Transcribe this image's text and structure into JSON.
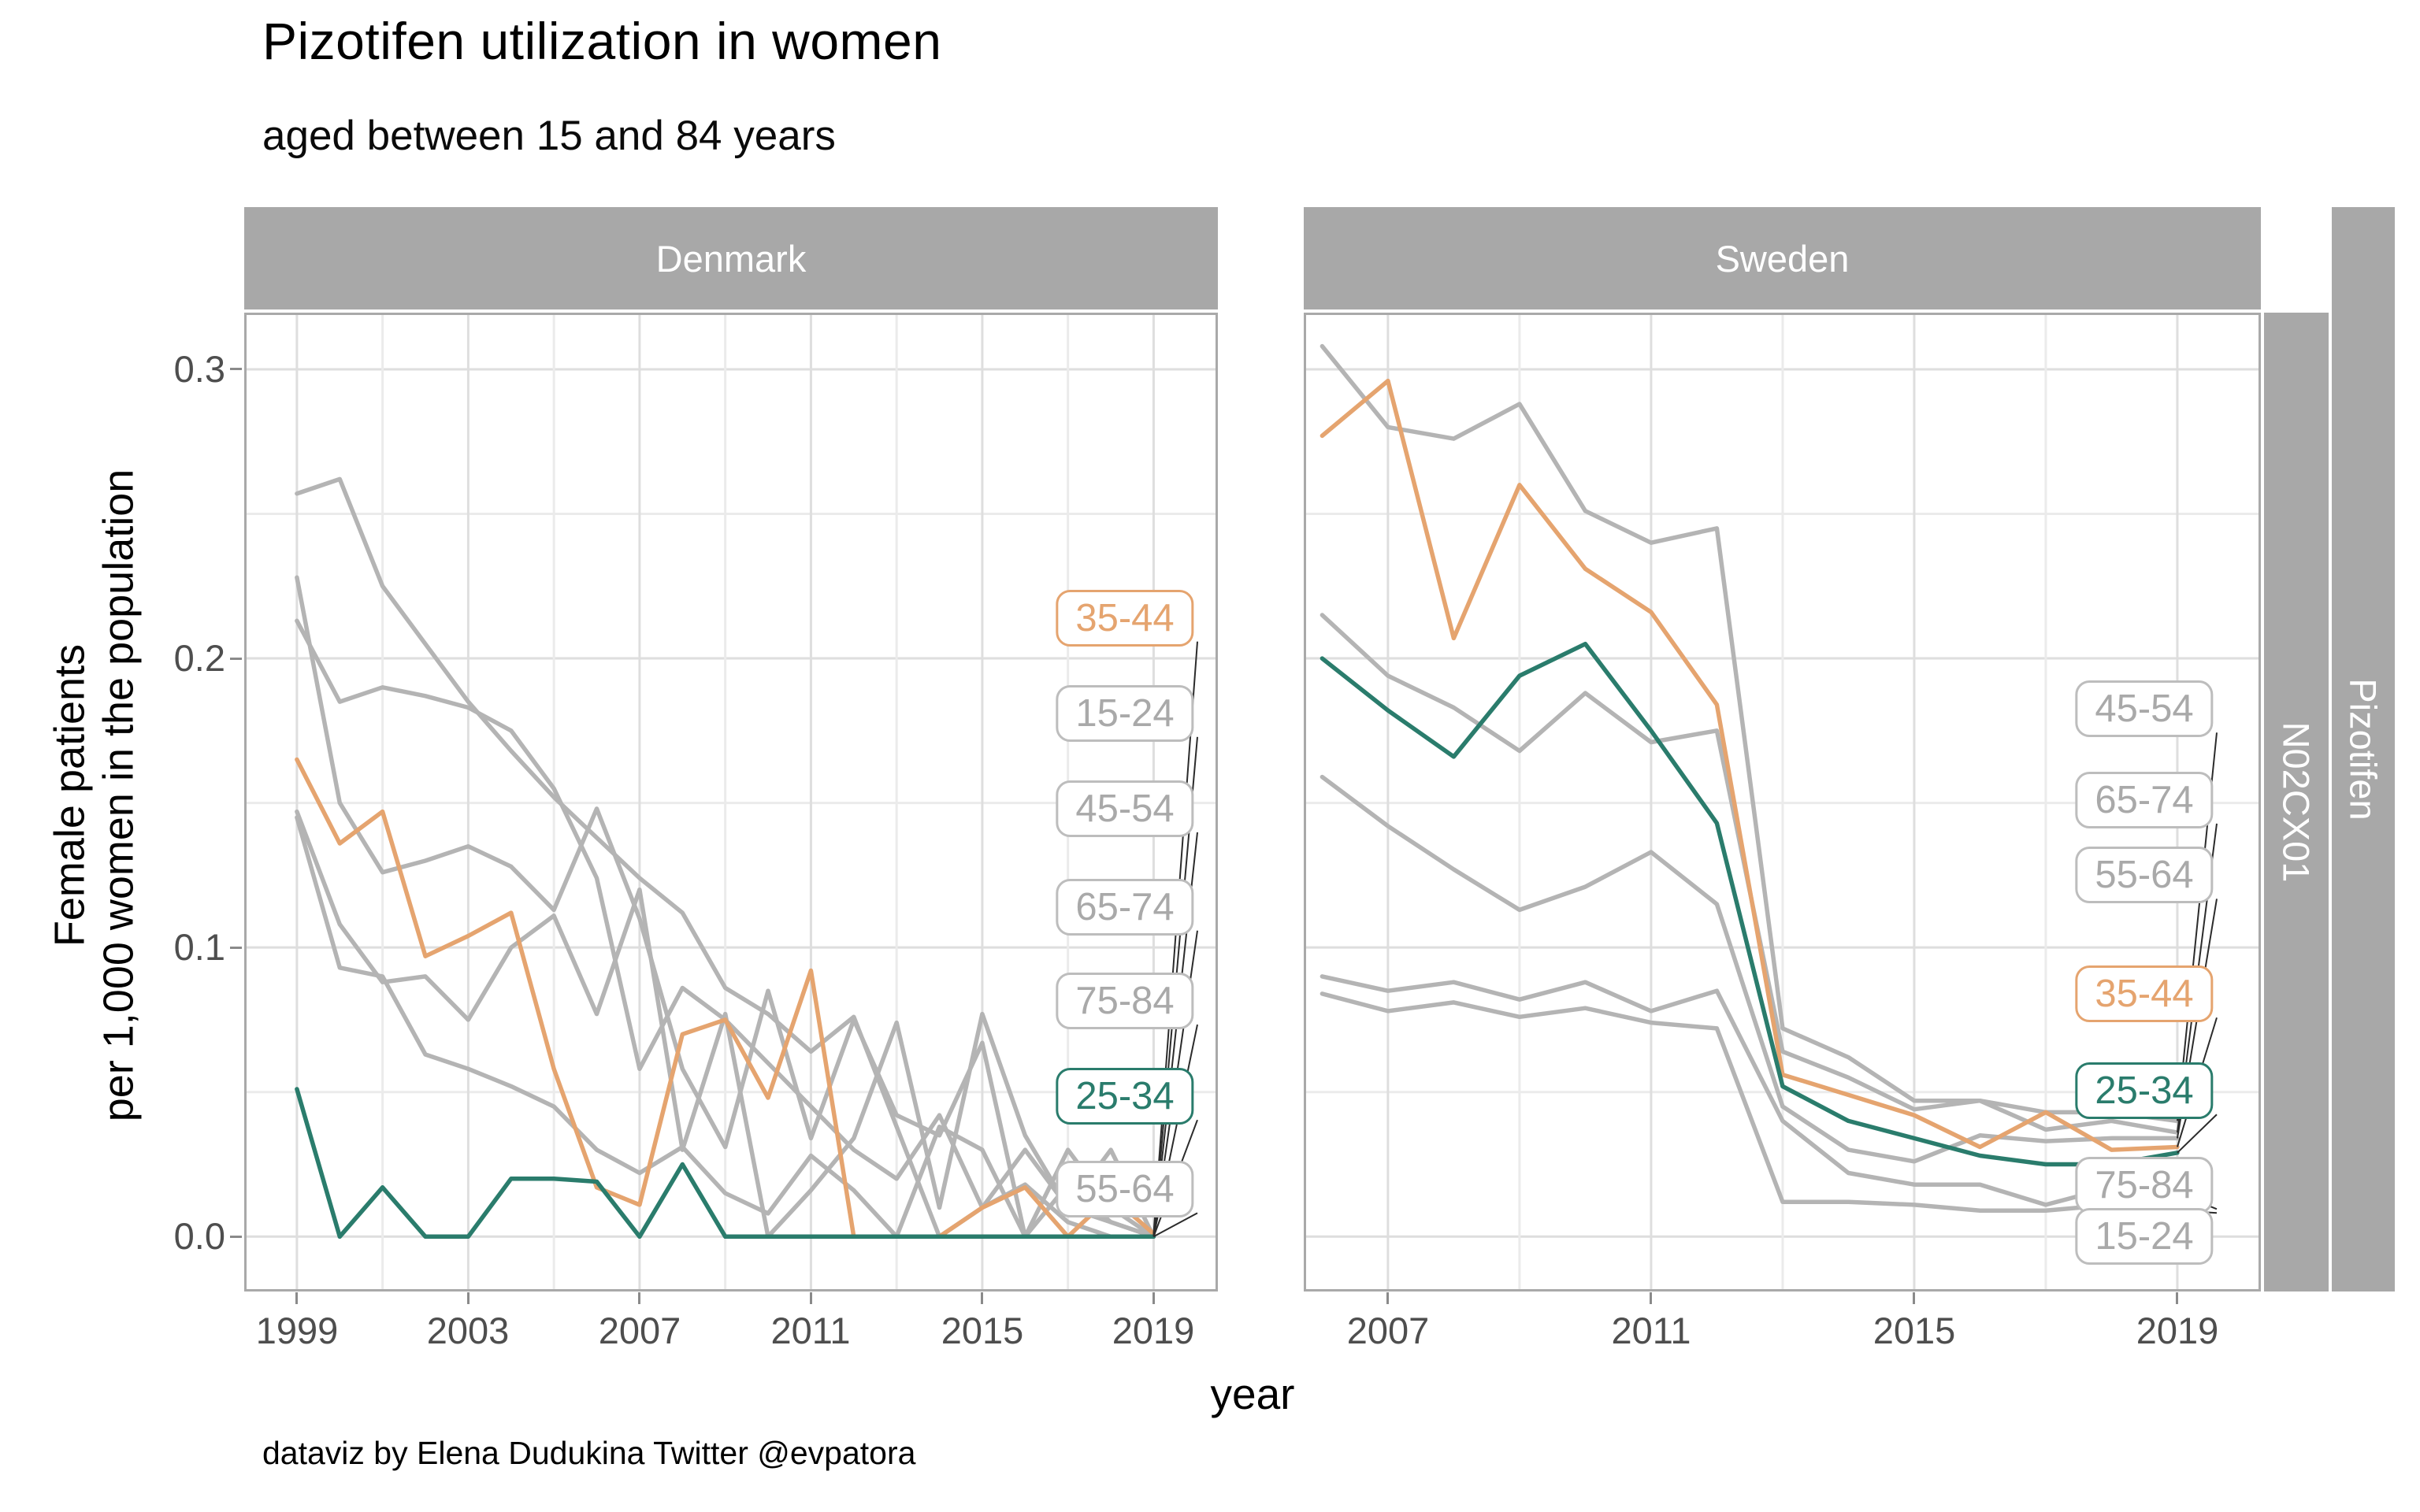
{
  "title": "Pizotifen utilization in women",
  "subtitle": "aged between 15 and 84 years",
  "caption": "dataviz by Elena Dudukina Twitter @evpatora",
  "x_axis_title": "year",
  "y_axis_title_line1": "Female patients",
  "y_axis_title_line2": "per 1,000 women in the population",
  "strip_right": [
    "N02CX01",
    "Pizotifen"
  ],
  "colors": {
    "gray": "#b4b4b4",
    "orange": "#e5a46f",
    "teal": "#2a7c6c",
    "grid_major": "#dedede",
    "grid_minor": "#ebebeb",
    "panel_border": "#a9a9a9",
    "strip_bg": "#a8a8a8",
    "strip_text": "#ffffff",
    "axis_text": "#4e4e4e",
    "tick_mark": "#8a8a8a",
    "leader": "#2b2b2b"
  },
  "y_ticks": [
    {
      "label": "0.0",
      "v": 0.0
    },
    {
      "label": "0.1",
      "v": 0.1
    },
    {
      "label": "0.2",
      "v": 0.2
    },
    {
      "label": "0.3",
      "v": 0.3
    }
  ],
  "y_grid": [
    0.0,
    0.05,
    0.1,
    0.15,
    0.2,
    0.25,
    0.3
  ],
  "y_grid_major": [
    0.0,
    0.1,
    0.2,
    0.3
  ],
  "ylim": [
    -0.019,
    0.3196
  ],
  "chart_data": [
    {
      "type": "line",
      "facet": "Denmark",
      "xlabel": "year",
      "ylabel": "Female patients per 1,000 women in the population",
      "x": [
        1999,
        2000,
        2001,
        2002,
        2003,
        2004,
        2005,
        2006,
        2007,
        2008,
        2009,
        2010,
        2011,
        2012,
        2013,
        2014,
        2015,
        2016,
        2017,
        2018,
        2019
      ],
      "x_tick_labels": [
        1999,
        2003,
        2007,
        2011,
        2015,
        2019
      ],
      "x_grid_years": [
        1999,
        2001,
        2003,
        2005,
        2007,
        2009,
        2011,
        2013,
        2015,
        2017,
        2019
      ],
      "xlim": [
        1997.77,
        2020.5
      ],
      "series": [
        {
          "name": "15-24",
          "color": "gray",
          "values": [
            0.145,
            0.093,
            0.09,
            0.063,
            0.058,
            0.052,
            0.045,
            0.03,
            0.022,
            0.031,
            0.015,
            0.008,
            0.028,
            0.016,
            0.0,
            0.038,
            0.03,
            0.0,
            0.018,
            0.005,
            0.0
          ]
        },
        {
          "name": "45-54",
          "color": "gray",
          "values": [
            0.257,
            0.262,
            0.225,
            0.205,
            0.185,
            0.168,
            0.152,
            0.138,
            0.124,
            0.112,
            0.086,
            0.077,
            0.064,
            0.076,
            0.038,
            0.0,
            0.01,
            0.018,
            0.005,
            0.0,
            0.0
          ]
        },
        {
          "name": "55-64",
          "color": "gray",
          "values": [
            0.228,
            0.15,
            0.126,
            0.13,
            0.135,
            0.128,
            0.113,
            0.148,
            0.11,
            0.058,
            0.031,
            0.085,
            0.034,
            0.075,
            0.042,
            0.035,
            0.067,
            0.0,
            0.03,
            0.01,
            0.0
          ]
        },
        {
          "name": "65-74",
          "color": "gray",
          "values": [
            0.213,
            0.185,
            0.19,
            0.187,
            0.183,
            0.175,
            0.155,
            0.124,
            0.058,
            0.086,
            0.075,
            0.06,
            0.045,
            0.03,
            0.02,
            0.042,
            0.01,
            0.03,
            0.01,
            0.005,
            0.0
          ]
        },
        {
          "name": "75-84",
          "color": "gray",
          "values": [
            0.147,
            0.108,
            0.088,
            0.09,
            0.075,
            0.1,
            0.111,
            0.077,
            0.12,
            0.03,
            0.077,
            0.0,
            0.016,
            0.034,
            0.074,
            0.01,
            0.077,
            0.035,
            0.01,
            0.03,
            0.0
          ]
        },
        {
          "name": "35-44",
          "color": "orange",
          "values": [
            0.165,
            0.136,
            0.147,
            0.097,
            0.104,
            0.112,
            0.058,
            0.017,
            0.011,
            0.07,
            0.075,
            0.048,
            0.092,
            0.0,
            0.0,
            0.0,
            0.01,
            0.017,
            0.0,
            0.014,
            0.001
          ]
        },
        {
          "name": "25-34",
          "color": "teal",
          "values": [
            0.051,
            0.0,
            0.017,
            0.0,
            0.0,
            0.02,
            0.02,
            0.019,
            0.0,
            0.025,
            0.0,
            0.0,
            0.0,
            0.0,
            0.0,
            0.0,
            0.0,
            0.0,
            0.0,
            0.0,
            0.0
          ]
        }
      ],
      "labels": [
        {
          "text": "35-44",
          "color": "orange",
          "y": 0.214
        },
        {
          "text": "15-24",
          "color": "gray",
          "y": 0.181
        },
        {
          "text": "45-54",
          "color": "gray",
          "y": 0.148
        },
        {
          "text": "65-74",
          "color": "gray",
          "y": 0.114
        },
        {
          "text": "75-84",
          "color": "gray",
          "y": 0.0815
        },
        {
          "text": "25-34",
          "color": "teal",
          "y": 0.0485
        },
        {
          "text": "55-64",
          "color": "gray",
          "y": 0.0163
        }
      ]
    },
    {
      "type": "line",
      "facet": "Sweden",
      "xlabel": "year",
      "ylabel": "Female patients per 1,000 women in the population",
      "x": [
        2006,
        2007,
        2008,
        2009,
        2010,
        2011,
        2012,
        2013,
        2014,
        2015,
        2016,
        2017,
        2018,
        2019
      ],
      "x_tick_labels": [
        2007,
        2011,
        2015,
        2019
      ],
      "x_grid_years": [
        2007,
        2009,
        2011,
        2013,
        2015,
        2017,
        2019
      ],
      "xlim": [
        2005.72,
        2020.27
      ],
      "series": [
        {
          "name": "15-24",
          "color": "gray",
          "values": [
            0.084,
            0.078,
            0.081,
            0.076,
            0.079,
            0.074,
            0.072,
            0.012,
            0.012,
            0.011,
            0.009,
            0.009,
            0.011,
            0.009
          ]
        },
        {
          "name": "45-54",
          "color": "gray",
          "values": [
            0.308,
            0.28,
            0.276,
            0.288,
            0.251,
            0.24,
            0.245,
            0.072,
            0.062,
            0.047,
            0.047,
            0.043,
            0.043,
            0.04
          ]
        },
        {
          "name": "55-64",
          "color": "gray",
          "values": [
            0.159,
            0.142,
            0.127,
            0.113,
            0.121,
            0.133,
            0.115,
            0.045,
            0.03,
            0.026,
            0.035,
            0.033,
            0.034,
            0.034
          ]
        },
        {
          "name": "65-74",
          "color": "gray",
          "values": [
            0.215,
            0.194,
            0.183,
            0.168,
            0.188,
            0.171,
            0.175,
            0.064,
            0.055,
            0.044,
            0.047,
            0.037,
            0.04,
            0.036
          ]
        },
        {
          "name": "75-84",
          "color": "gray",
          "values": [
            0.09,
            0.085,
            0.088,
            0.082,
            0.088,
            0.078,
            0.085,
            0.04,
            0.022,
            0.018,
            0.018,
            0.011,
            0.017,
            0.015
          ]
        },
        {
          "name": "35-44",
          "color": "orange",
          "values": [
            0.277,
            0.296,
            0.207,
            0.26,
            0.231,
            0.216,
            0.184,
            0.056,
            0.049,
            0.042,
            0.031,
            0.043,
            0.03,
            0.031
          ]
        },
        {
          "name": "25-34",
          "color": "teal",
          "values": [
            0.2,
            0.182,
            0.166,
            0.194,
            0.205,
            0.175,
            0.143,
            0.052,
            0.04,
            0.034,
            0.028,
            0.025,
            0.025,
            0.029
          ]
        }
      ],
      "labels": [
        {
          "text": "45-54",
          "color": "gray",
          "y": 0.1825
        },
        {
          "text": "65-74",
          "color": "gray",
          "y": 0.151
        },
        {
          "text": "55-64",
          "color": "gray",
          "y": 0.125
        },
        {
          "text": "35-44",
          "color": "orange",
          "y": 0.0839
        },
        {
          "text": "25-34",
          "color": "teal",
          "y": 0.0504
        },
        {
          "text": "75-84",
          "color": "gray",
          "y": 0.0177
        },
        {
          "text": "15-24",
          "color": "gray",
          "y": 0.0
        }
      ]
    }
  ]
}
